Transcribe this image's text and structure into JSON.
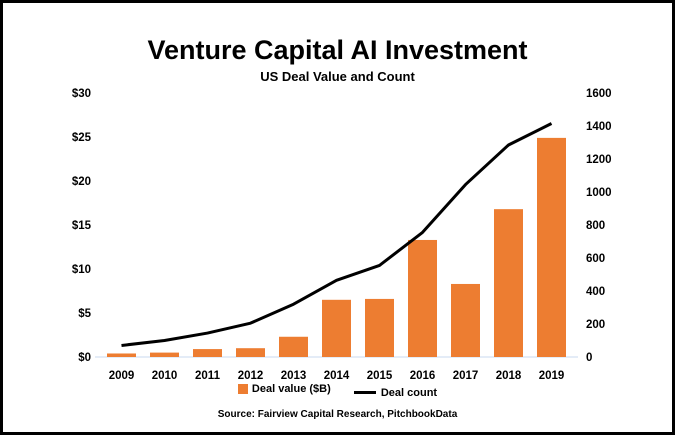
{
  "chart_data": {
    "type": "bar+line",
    "title": "Venture Capital AI Investment",
    "subtitle": "US Deal Value and Count",
    "categories": [
      "2009",
      "2010",
      "2011",
      "2012",
      "2013",
      "2014",
      "2015",
      "2016",
      "2017",
      "2018",
      "2019"
    ],
    "series": [
      {
        "name": "Deal value ($B)",
        "type": "bar",
        "axis": "left",
        "color": "#ED7D31",
        "values": [
          0.4,
          0.5,
          0.9,
          1.0,
          2.3,
          6.5,
          6.6,
          13.3,
          8.3,
          16.8,
          24.9
        ]
      },
      {
        "name": "Deal count",
        "type": "line",
        "axis": "right",
        "color": "#000000",
        "values": [
          70,
          100,
          145,
          205,
          320,
          465,
          555,
          755,
          1045,
          1285,
          1415
        ]
      }
    ],
    "left_axis": {
      "ylim": [
        0,
        30
      ],
      "ticks": [
        0,
        5,
        10,
        15,
        20,
        25,
        30
      ],
      "tick_labels": [
        "$0",
        "$5",
        "$10",
        "$15",
        "$20",
        "$25",
        "$30"
      ]
    },
    "right_axis": {
      "ylim": [
        0,
        1600
      ],
      "ticks": [
        0,
        200,
        400,
        600,
        800,
        1000,
        1200,
        1400,
        1600
      ],
      "tick_labels": [
        "0",
        "200",
        "400",
        "600",
        "800",
        "1000",
        "1200",
        "1400",
        "1600"
      ]
    },
    "legend_position": "bottom",
    "grid": false,
    "source": "Source: Fairview Capital Research, PitchbookData"
  }
}
